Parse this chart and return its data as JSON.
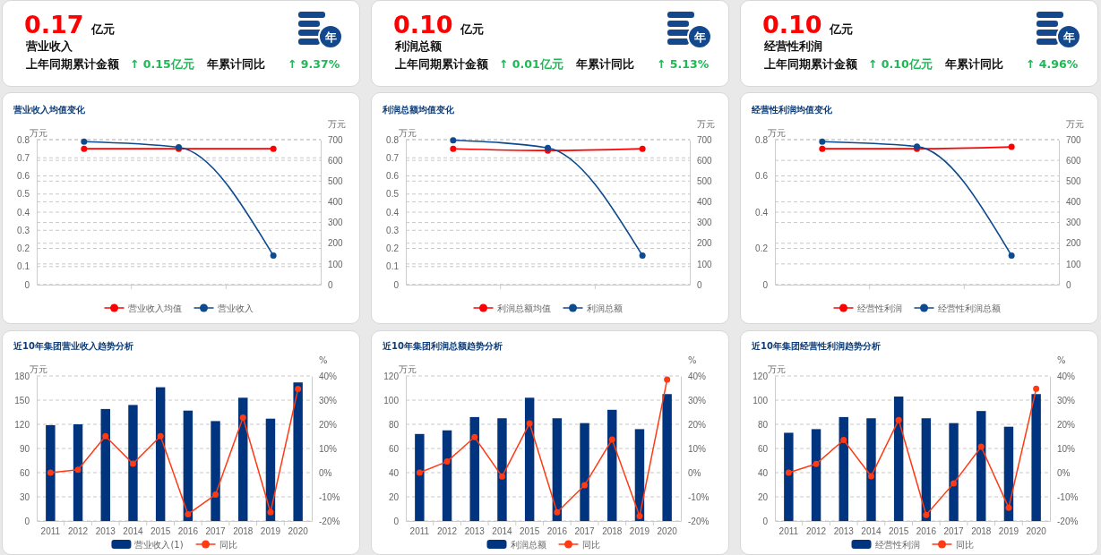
{
  "chart_data": [
    {
      "type": "other",
      "title": "营业收入",
      "annotations": [
        "0.17",
        "亿元",
        "上年同期累计金额",
        "↑ 0.15亿元",
        "年累计同比",
        "↑ 9.37%",
        "年"
      ]
    },
    {
      "type": "other",
      "title": "利润总额",
      "annotations": [
        "0.10",
        "亿元",
        "上年同期累计金额",
        "↑ 0.01亿元",
        "年累计同比",
        "↑ 5.13%",
        "年"
      ]
    },
    {
      "type": "other",
      "title": "经营性利润",
      "annotations": [
        "0.10",
        "亿元",
        "上年同期累计金额",
        "↑ 0.10亿元",
        "年累计同比",
        "↑ 4.96%",
        "年"
      ]
    },
    {
      "type": "line",
      "title": "营业收入均值变化",
      "ylabel": "万元",
      "y2label": "万元",
      "categories": [
        null,
        null,
        null
      ],
      "ylim": [
        0,
        0.8
      ],
      "yticks": [
        0,
        0.1,
        0.2,
        0.3,
        0.4,
        0.5,
        0.6,
        0.7,
        0.8
      ],
      "y2lim": [
        0,
        700
      ],
      "y2ticks": [
        0,
        100,
        200,
        300,
        400,
        500,
        600,
        700
      ],
      "grid": true,
      "legend": "bottom",
      "marker": "circle",
      "series": [
        {
          "name": "营业收入均值",
          "color": "#ff0000",
          "values": [
            0.75,
            0.75,
            0.75
          ]
        },
        {
          "name": "营业收入",
          "color": "#0d4a8f",
          "axis": "y2",
          "values": [
            690,
            663,
            140
          ]
        }
      ]
    },
    {
      "type": "line",
      "title": "利润总额均值变化",
      "ylabel": "万元",
      "y2label": "万元",
      "categories": [
        null,
        null,
        null
      ],
      "ylim": [
        0,
        0.8
      ],
      "yticks": [
        0,
        0.1,
        0.2,
        0.3,
        0.4,
        0.5,
        0.6,
        0.7,
        0.8
      ],
      "y2lim": [
        0,
        700
      ],
      "y2ticks": [
        0,
        100,
        200,
        300,
        400,
        500,
        600,
        700
      ],
      "grid": true,
      "legend": "bottom",
      "marker": "circle",
      "series": [
        {
          "name": "利润总额均值",
          "color": "#ff0000",
          "values": [
            0.75,
            0.74,
            0.75
          ]
        },
        {
          "name": "利润总额",
          "color": "#0d4a8f",
          "axis": "y2",
          "values": [
            697,
            660,
            140
          ]
        }
      ]
    },
    {
      "type": "line",
      "title": "经营性利润均值变化",
      "ylabel": "万元",
      "y2label": "万元",
      "categories": [
        null,
        null,
        null
      ],
      "ylim": [
        0,
        0.8
      ],
      "yticks": [
        0,
        0.2,
        0.4,
        0.6,
        0.8
      ],
      "y2lim": [
        0,
        700
      ],
      "y2ticks": [
        0,
        100,
        200,
        300,
        400,
        500,
        600,
        700
      ],
      "grid": true,
      "legend": "bottom",
      "marker": "circle",
      "series": [
        {
          "name": "经营性利润",
          "color": "#ff0000",
          "values": [
            0.75,
            0.75,
            0.76
          ]
        },
        {
          "name": "经营性利润总额",
          "color": "#0d4a8f",
          "axis": "y2",
          "values": [
            690,
            667,
            140
          ]
        }
      ]
    },
    {
      "type": "bar",
      "title": "近10年集团营业收入趋势分析",
      "ylabel": "万元",
      "y2label": "%",
      "categories": [
        "2011",
        "2012",
        "2013",
        "2014",
        "2015",
        "2016",
        "2017",
        "2018",
        "2019",
        "2020"
      ],
      "ylim": [
        0,
        180
      ],
      "yticks": [
        0,
        30,
        60,
        90,
        120,
        150,
        180
      ],
      "y2lim": [
        -20,
        40
      ],
      "y2ticks": [
        {
          "value": -20,
          "label": "-20%"
        },
        {
          "value": -10,
          "label": "-10%"
        },
        {
          "value": 0,
          "label": "0%"
        },
        {
          "value": 10,
          "label": "10%"
        },
        {
          "value": 20,
          "label": "20%"
        },
        {
          "value": 30,
          "label": "30%"
        },
        {
          "value": 40,
          "label": "40%"
        }
      ],
      "grid": "y",
      "legend": "bottom",
      "marker": "circle",
      "series": [
        {
          "name": "营业收入(1)",
          "color": "#00347e",
          "values": [
            119,
            120,
            139,
            144,
            166,
            137,
            124,
            153,
            127,
            172
          ]
        },
        {
          "name": "同比",
          "type": "line",
          "axis": "y2",
          "color": "#ff3a14",
          "values": [
            0,
            1.2,
            15.1,
            3.7,
            15.1,
            -17.2,
            -9.1,
            22.8,
            -16.4,
            34.6
          ]
        }
      ]
    },
    {
      "type": "bar",
      "title": "近10年集团利润总额趋势分析",
      "ylabel": "万元",
      "y2label": "%",
      "categories": [
        "2011",
        "2012",
        "2013",
        "2014",
        "2015",
        "2016",
        "2017",
        "2018",
        "2019",
        "2020"
      ],
      "ylim": [
        0,
        120
      ],
      "yticks": [
        0,
        20,
        40,
        60,
        80,
        100,
        120
      ],
      "y2lim": [
        -20,
        40
      ],
      "y2ticks": [
        {
          "value": -20,
          "label": "-20%"
        },
        {
          "value": -10,
          "label": "-10%"
        },
        {
          "value": 0,
          "label": "0%"
        },
        {
          "value": 10,
          "label": "10%"
        },
        {
          "value": 20,
          "label": "20%"
        },
        {
          "value": 30,
          "label": "30%"
        },
        {
          "value": 40,
          "label": "40%"
        }
      ],
      "grid": "y",
      "legend": "bottom",
      "marker": "circle",
      "series": [
        {
          "name": "利润总额",
          "color": "#00347e",
          "values": [
            72,
            75,
            86,
            85,
            102,
            85,
            81,
            92,
            76,
            105
          ]
        },
        {
          "name": "同比",
          "type": "line",
          "axis": "y2",
          "color": "#ff3a14",
          "values": [
            0,
            4.6,
            14.7,
            -1.6,
            20.4,
            -16.4,
            -5.2,
            13.7,
            -18,
            38.5
          ]
        }
      ]
    },
    {
      "type": "bar",
      "title": "近10年集团经营性利润趋势分析",
      "ylabel": "万元",
      "y2label": "%",
      "categories": [
        "2011",
        "2012",
        "2013",
        "2014",
        "2015",
        "2016",
        "2017",
        "2018",
        "2019",
        "2020"
      ],
      "ylim": [
        0,
        120
      ],
      "yticks": [
        0,
        20,
        40,
        60,
        80,
        100,
        120
      ],
      "y2lim": [
        -20,
        40
      ],
      "y2ticks": [
        {
          "value": -20,
          "label": "-20%"
        },
        {
          "value": -10,
          "label": "-10%"
        },
        {
          "value": 0,
          "label": "0%"
        },
        {
          "value": 10,
          "label": "10%"
        },
        {
          "value": 20,
          "label": "20%"
        },
        {
          "value": 30,
          "label": "30%"
        },
        {
          "value": 40,
          "label": "40%"
        }
      ],
      "grid": "y",
      "legend": "bottom",
      "marker": "circle",
      "series": [
        {
          "name": "经营性利润",
          "color": "#00347e",
          "values": [
            73,
            76,
            86,
            85,
            103,
            85,
            81,
            91,
            78,
            105
          ]
        },
        {
          "name": "同比",
          "type": "line",
          "axis": "y2",
          "color": "#ff3a14",
          "values": [
            0,
            3.6,
            13.5,
            -1.5,
            21.8,
            -17.5,
            -4.4,
            10.7,
            -14.5,
            34.7
          ]
        }
      ]
    }
  ]
}
